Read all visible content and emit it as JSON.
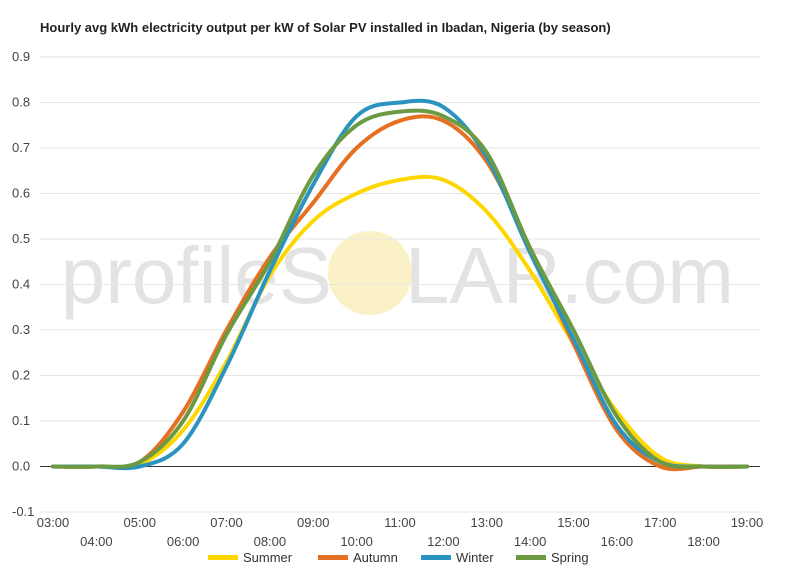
{
  "chart_data": {
    "type": "line",
    "title": "Hourly avg kWh electricity output per kW of Solar PV installed in Ibadan, Nigeria (by season)",
    "xlabel": "",
    "ylabel": "",
    "ylim": [
      -0.1,
      0.9
    ],
    "yticks": [
      "-0.1",
      "0.0",
      "0.1",
      "0.2",
      "0.3",
      "0.4",
      "0.5",
      "0.6",
      "0.7",
      "0.8",
      "0.9"
    ],
    "x": [
      3,
      4,
      5,
      6,
      7,
      8,
      9,
      10,
      11,
      12,
      13,
      14,
      15,
      16,
      17,
      18,
      19
    ],
    "xtick_labels": [
      "03:00",
      "04:00",
      "05:00",
      "06:00",
      "07:00",
      "08:00",
      "09:00",
      "10:00",
      "11:00",
      "12:00",
      "13:00",
      "14:00",
      "15:00",
      "16:00",
      "17:00",
      "18:00",
      "19:00"
    ],
    "grid": true,
    "legend_position": "bottom",
    "watermark": {
      "left": "profileS",
      "right": "LAR.com"
    },
    "series": [
      {
        "name": "Summer",
        "color": "#FFD700",
        "values": [
          0.0,
          0.0,
          0.005,
          0.08,
          0.23,
          0.42,
          0.54,
          0.6,
          0.63,
          0.63,
          0.56,
          0.43,
          0.27,
          0.12,
          0.02,
          0.0,
          0.0
        ]
      },
      {
        "name": "Autumn",
        "color": "#E67022",
        "values": [
          0.0,
          0.0,
          0.01,
          0.12,
          0.3,
          0.46,
          0.58,
          0.7,
          0.76,
          0.76,
          0.67,
          0.48,
          0.27,
          0.08,
          0.0,
          0.0,
          0.0
        ]
      },
      {
        "name": "Winter",
        "color": "#2A93BF",
        "values": [
          0.0,
          0.0,
          0.0,
          0.05,
          0.22,
          0.43,
          0.62,
          0.77,
          0.8,
          0.79,
          0.68,
          0.47,
          0.28,
          0.09,
          0.01,
          0.0,
          0.0
        ]
      },
      {
        "name": "Spring",
        "color": "#6B9A43",
        "values": [
          0.0,
          0.0,
          0.01,
          0.1,
          0.29,
          0.45,
          0.64,
          0.75,
          0.78,
          0.77,
          0.69,
          0.48,
          0.3,
          0.11,
          0.01,
          0.0,
          0.0
        ]
      }
    ]
  }
}
